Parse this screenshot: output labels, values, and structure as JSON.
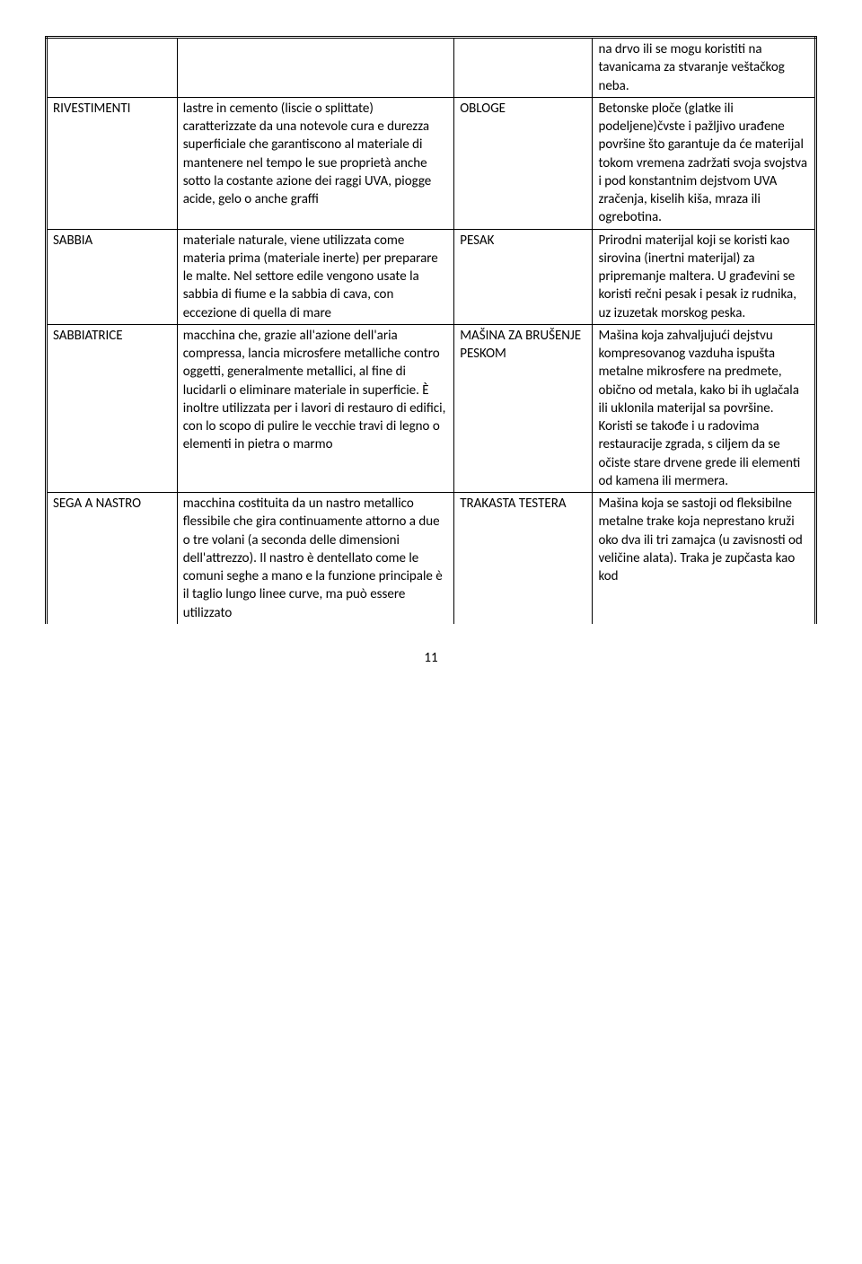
{
  "rows": [
    {
      "c1": "",
      "c2": "",
      "c3": "",
      "c4": "na drvo ili se mogu koristiti na tavanicama za stvaranje veštačkog neba."
    },
    {
      "c1": "RIVESTIMENTI",
      "c2": "lastre in cemento (liscie o splittate) caratterizzate da una notevole cura e durezza superficiale che garantiscono al materiale di mantenere nel tempo le sue proprietà anche sotto la costante azione dei raggi UVA, piogge acide, gelo o anche graffi",
      "c3": "OBLOGE",
      "c4": "Betonske ploče (glatke ili podeljene)čvste i pažljivo urađene površine što garantuje da će materijal tokom vremena zadržati svoja svojstva i pod konstantnim dejstvom UVA zračenja, kiselih kiša, mraza ili ogrebotina."
    },
    {
      "c1": "SABBIA",
      "c2": "materiale naturale, viene utilizzata come materia prima (materiale inerte) per preparare le malte. Nel settore edile vengono usate la sabbia di fiume e la sabbia di cava, con eccezione di quella di mare",
      "c3": "PESAK",
      "c4": "Prirodni materijal koji se koristi kao sirovina (inertni materijal) za pripremanje maltera. U građevini se koristi rečni pesak i pesak iz rudnika, uz izuzetak morskog peska."
    },
    {
      "c1": "SABBIATRICE",
      "c2": "macchina che, grazie all'azione dell'aria compressa, lancia microsfere metalliche contro oggetti, generalmente metallici, al fine di lucidarli o eliminare materiale in superficie. È inoltre utilizzata per i lavori di restauro di edifici, con lo scopo di pulire le vecchie travi di legno o elementi in pietra o marmo",
      "c3": "MAŠINA ZA BRUŠENJE PESKOM",
      "c4": "Mašina koja zahvaljujući dejstvu kompresovanog vazduha ispušta metalne mikrosfere na predmete, obično od metala, kako bi ih uglačala ili uklonila materijal sa površine. Koristi se takođe i u radovima restauracije zgrada, s ciljem da se očiste stare drvene grede ili elementi od kamena ili mermera."
    },
    {
      "c1": "SEGA A NASTRO",
      "c2": "macchina costituita da un nastro metallico flessibile che gira continuamente attorno a due o tre volani (a seconda delle dimensioni dell'attrezzo). Il nastro è dentellato come le comuni seghe a mano e la funzione principale è il taglio lungo linee curve, ma può essere utilizzato",
      "c3": "TRAKASTA TESTERA",
      "c4": "Mašina koja se sastoji od fleksibilne metalne trake koja neprestano kruži oko dva ili tri  zamajca (u zavisnosti od veličine alata). Traka je zupčasta kao kod"
    }
  ],
  "pageNumber": "11"
}
